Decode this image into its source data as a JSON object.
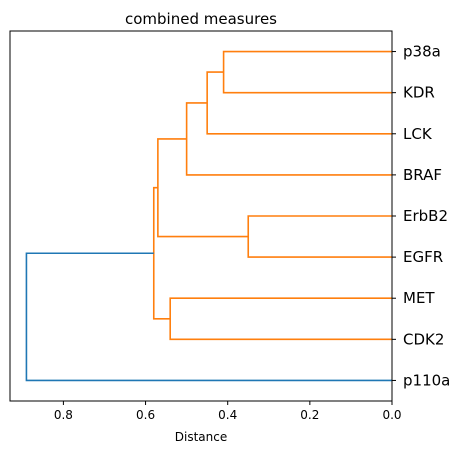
{
  "chart_data": {
    "type": "dendrogram",
    "title": "combined measures",
    "xlabel": "Distance",
    "ylabel": "",
    "orientation": "left",
    "x_axis_reversed": true,
    "xlim": [
      0.93,
      0.0
    ],
    "xticks": [
      0.8,
      0.6,
      0.4,
      0.2,
      0.0
    ],
    "xtick_labels": [
      "0.8",
      "0.6",
      "0.4",
      "0.2",
      "0.0"
    ],
    "grid": false,
    "leaves": [
      "p38a",
      "KDR",
      "LCK",
      "BRAF",
      "ErbB2",
      "EGFR",
      "MET",
      "CDK2",
      "p110a"
    ],
    "merges": [
      {
        "id": "m1",
        "left": "p38a",
        "right": "KDR",
        "distance": 0.41,
        "color": "#ff7f0e"
      },
      {
        "id": "m2",
        "left": "m1",
        "right": "LCK",
        "distance": 0.45,
        "color": "#ff7f0e"
      },
      {
        "id": "m3",
        "left": "m2",
        "right": "BRAF",
        "distance": 0.5,
        "color": "#ff7f0e"
      },
      {
        "id": "m4",
        "left": "ErbB2",
        "right": "EGFR",
        "distance": 0.35,
        "color": "#ff7f0e"
      },
      {
        "id": "m5",
        "left": "m3",
        "right": "m4",
        "distance": 0.57,
        "color": "#ff7f0e"
      },
      {
        "id": "m6",
        "left": "MET",
        "right": "CDK2",
        "distance": 0.54,
        "color": "#ff7f0e"
      },
      {
        "id": "m7",
        "left": "m5",
        "right": "m6",
        "distance": 0.58,
        "color": "#ff7f0e"
      },
      {
        "id": "m8",
        "left": "m7",
        "right": "p110a",
        "distance": 0.89,
        "color": "#1f77b4"
      }
    ],
    "colors": {
      "cluster": "#ff7f0e",
      "above_threshold": "#1f77b4"
    }
  }
}
